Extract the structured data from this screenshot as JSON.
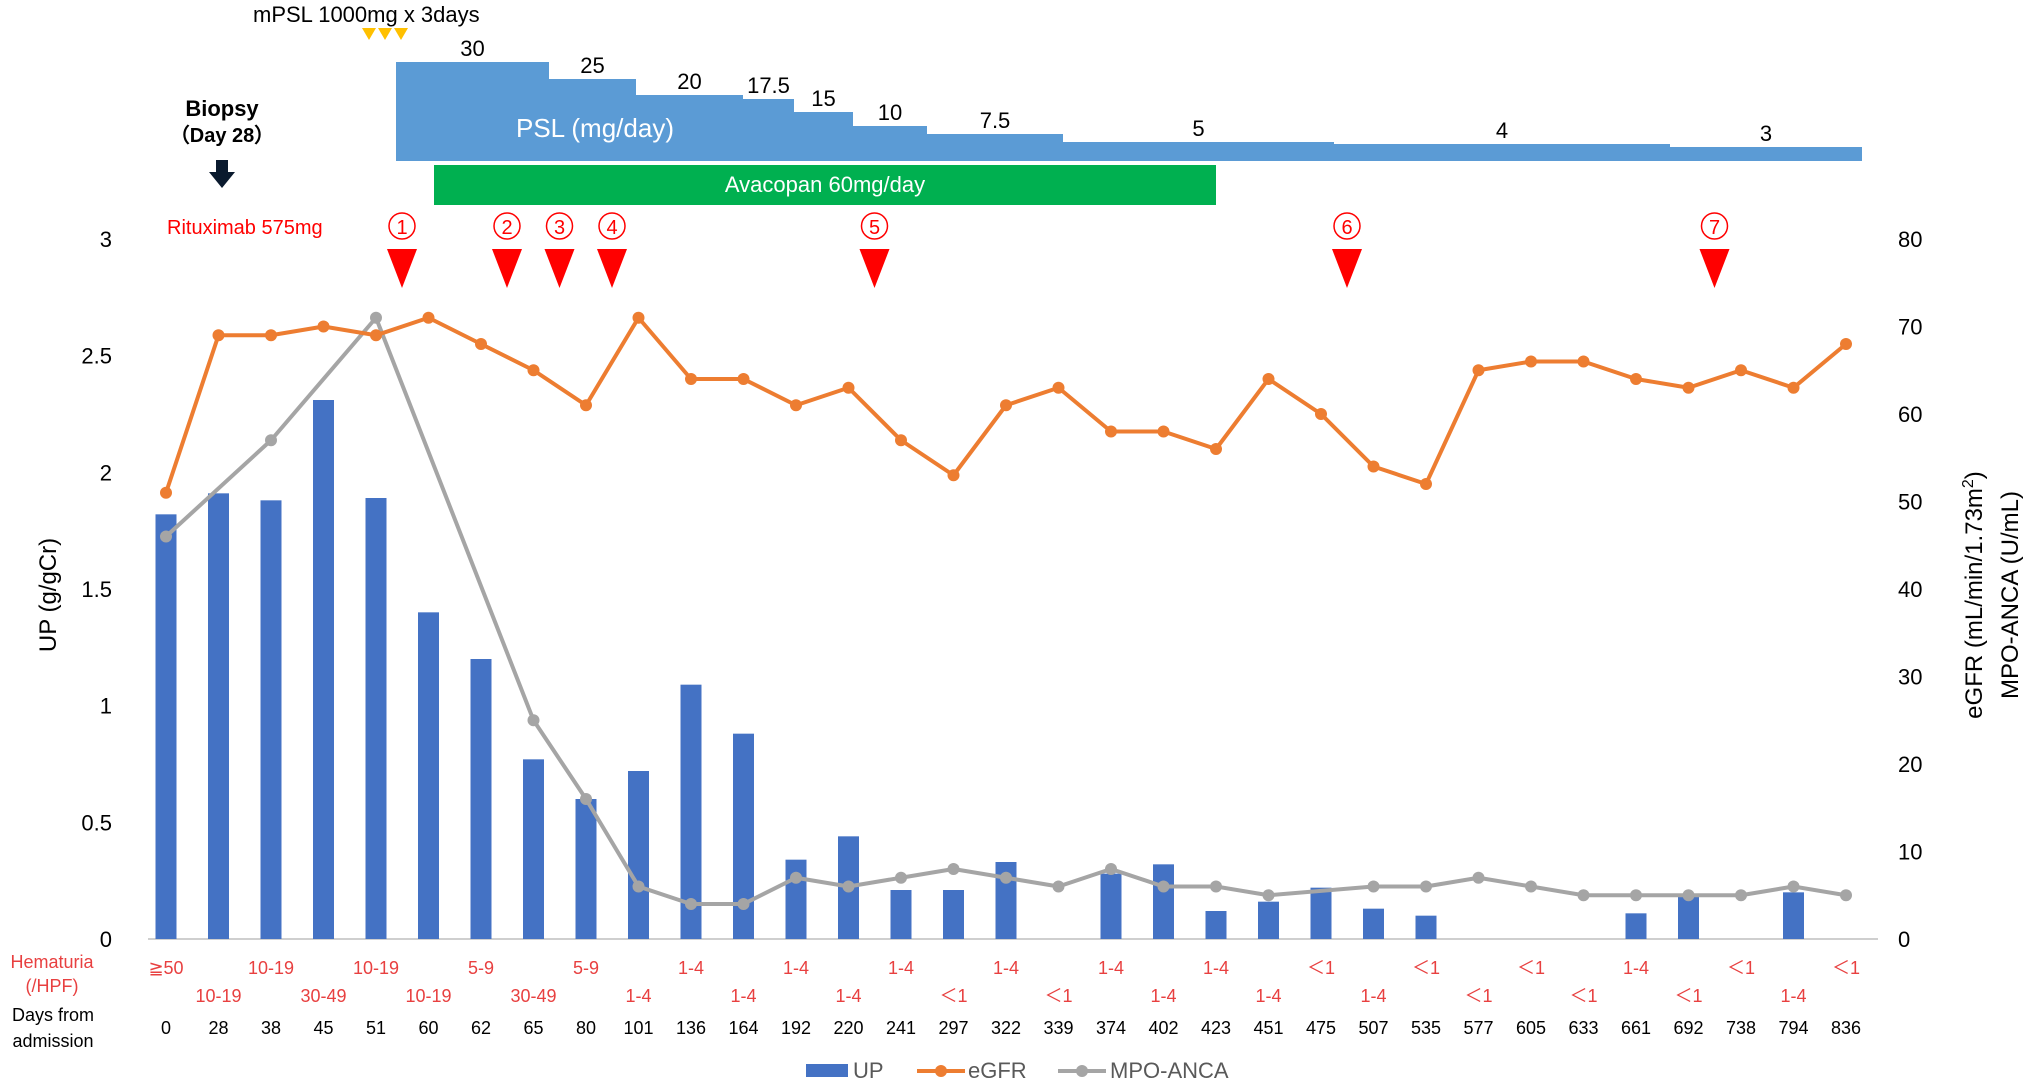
{
  "treatment": {
    "mpsl_label": "mPSL 1000mg x 3days",
    "biopsy_label": "Biopsy",
    "biopsy_day": "（Day 28）",
    "psl_label": "PSL (mg/day)",
    "psl_steps": [
      "30",
      "25",
      "20",
      "17.5",
      "15",
      "10",
      "7.5",
      "5",
      "4",
      "3"
    ],
    "avacopan_label": "Avacopan 60mg/day",
    "rituximab_label": "Rituximab 575mg",
    "rituximab_doses": [
      "①",
      "②",
      "③",
      "④",
      "⑤",
      "⑥",
      "⑦"
    ],
    "rituximab_dose_days": [
      "51",
      "62",
      "65",
      "80",
      "220",
      "475",
      "692"
    ]
  },
  "colors": {
    "up_bar": "#4472C4",
    "egfr": "#ED7D31",
    "mpo_anca": "#A5A5A5",
    "psl": "#5B9BD5",
    "avacopan": "#00B050",
    "rituximab": "#FF0000",
    "mpsl": "#FFC000",
    "hematuria_text": "#E84040"
  },
  "row_labels": {
    "hematuria_line1": "Hematuria",
    "hematuria_line2": "(/HPF)",
    "days_line1": "Days from",
    "days_line2": "admission"
  },
  "chart_data": {
    "type": "bar+line",
    "categories": [
      "0",
      "28",
      "38",
      "45",
      "51",
      "60",
      "62",
      "65",
      "80",
      "101",
      "136",
      "164",
      "192",
      "220",
      "241",
      "297",
      "322",
      "339",
      "374",
      "402",
      "423",
      "451",
      "475",
      "507",
      "535",
      "577",
      "605",
      "633",
      "661",
      "692",
      "738",
      "794",
      "836"
    ],
    "hematuria": [
      "≧50",
      "10-19",
      "10-19",
      "30-49",
      "10-19",
      "10-19",
      "5-9",
      "30-49",
      "5-9",
      "1-4",
      "1-4",
      "1-4",
      "1-4",
      "1-4",
      "1-4",
      "＜1",
      "1-4",
      "＜1",
      "1-4",
      "1-4",
      "1-4",
      "1-4",
      "＜1",
      "1-4",
      "＜1",
      "＜1",
      "＜1",
      "＜1",
      "1-4",
      "＜1",
      "＜1",
      "1-4",
      "＜1"
    ],
    "series": [
      {
        "name": "UP",
        "type": "bar",
        "axis": "left",
        "values": [
          1.82,
          1.91,
          1.88,
          2.31,
          1.89,
          1.4,
          1.2,
          0.77,
          0.6,
          0.72,
          1.09,
          0.88,
          0.34,
          0.44,
          0.21,
          0.21,
          0.33,
          null,
          0.28,
          0.32,
          0.12,
          0.16,
          0.22,
          0.13,
          0.1,
          null,
          null,
          null,
          0.11,
          0.18,
          null,
          0.2,
          null
        ]
      },
      {
        "name": "eGFR",
        "type": "line",
        "axis": "right",
        "values": [
          51,
          69,
          69,
          70,
          69,
          71,
          68,
          65,
          61,
          71,
          64,
          64,
          61,
          63,
          57,
          53,
          61,
          63,
          58,
          58,
          56,
          64,
          60,
          54,
          52,
          65,
          66,
          66,
          64,
          63,
          65,
          63,
          68
        ]
      },
      {
        "name": "MPO-ANCA",
        "type": "line",
        "axis": "right",
        "values": [
          46,
          null,
          57,
          null,
          71,
          null,
          null,
          25,
          16,
          6,
          4,
          4,
          7,
          6,
          7,
          8,
          7,
          6,
          8,
          6,
          6,
          5,
          null,
          6,
          6,
          7,
          6,
          5,
          5,
          5,
          5,
          6,
          5
        ]
      }
    ],
    "left_axis": {
      "label": "UP (g/gCr)",
      "ylim": [
        0,
        3
      ],
      "ticks": [
        "0",
        "0.5",
        "1",
        "1.5",
        "2",
        "2.5",
        "3"
      ]
    },
    "right_axis": {
      "label_line1": "eGFR (mL/min/1.73m",
      "label_sup": "2",
      "label_close": ")",
      "label_line2": "MPO-ANCA (U/mL)",
      "ylim": [
        0,
        80
      ],
      "ticks": [
        "0",
        "10",
        "20",
        "30",
        "40",
        "50",
        "60",
        "70",
        "80"
      ]
    },
    "grid": false,
    "legend": [
      "UP",
      "eGFR",
      "MPO-ANCA"
    ],
    "legend_position": "bottom"
  }
}
